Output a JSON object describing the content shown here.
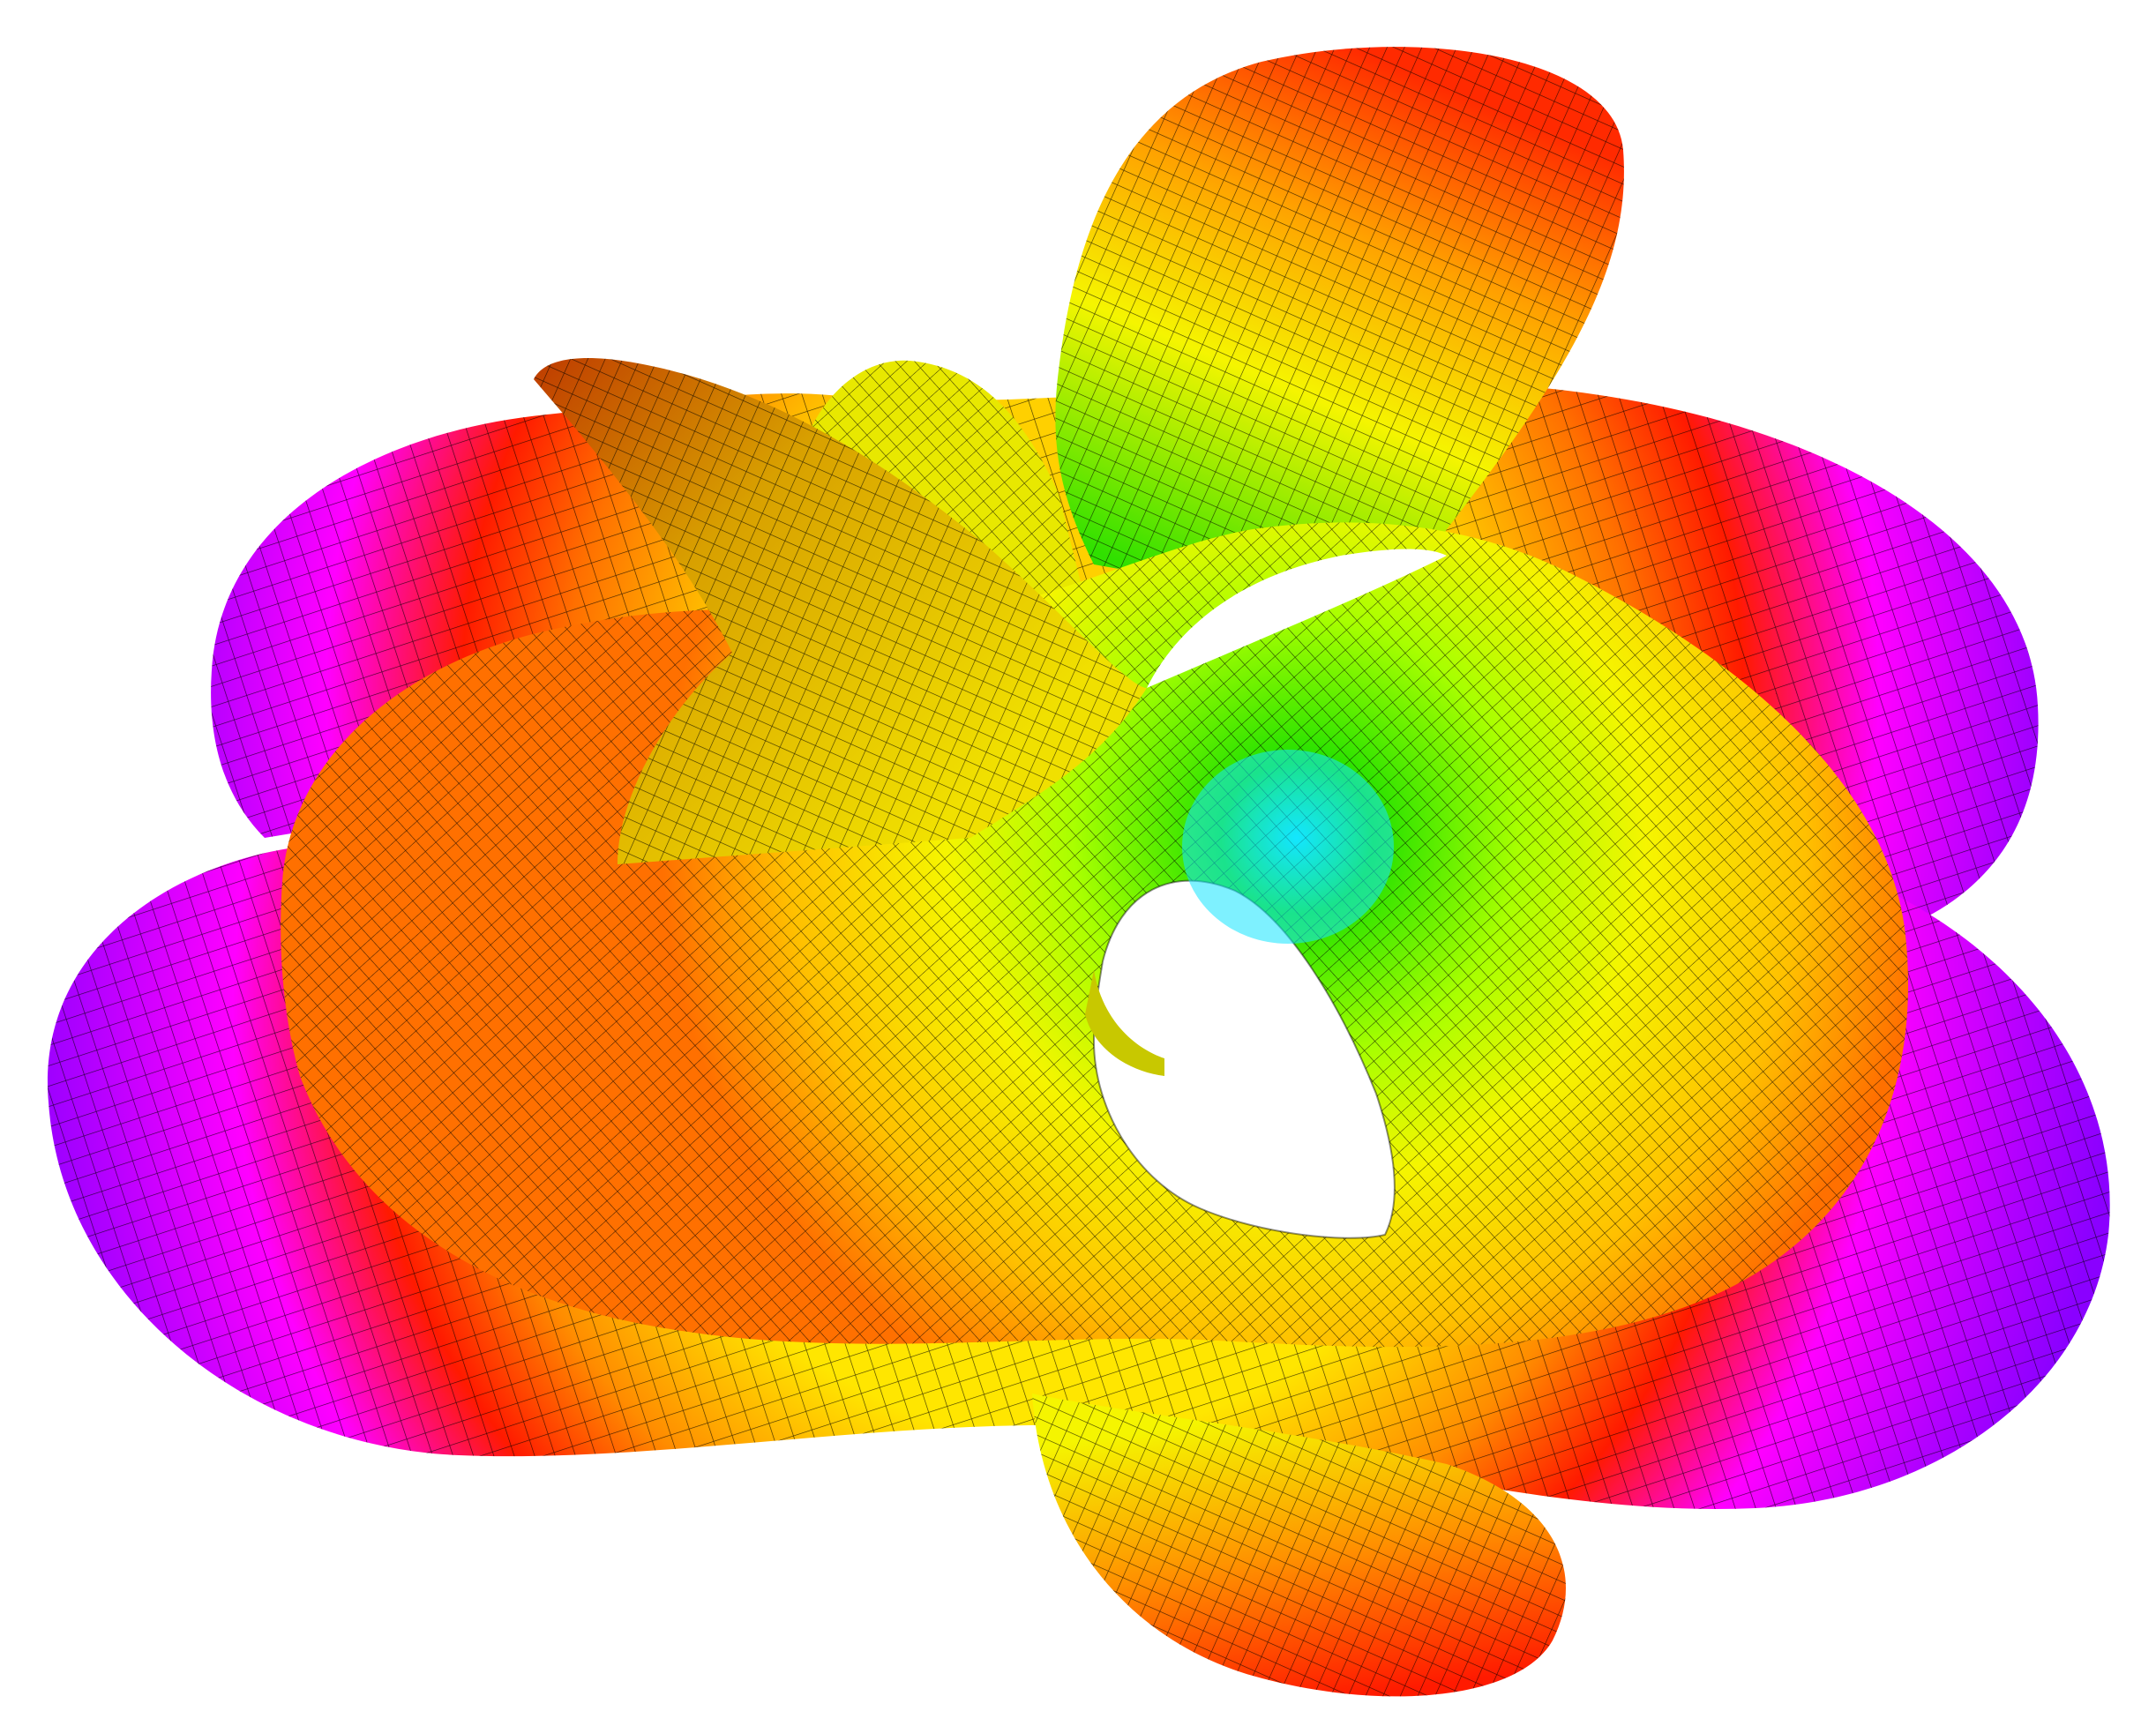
{
  "image": {
    "subject": "minimal-surface-render",
    "background_color": "#ffffff",
    "mesh_line_color": "#000000",
    "palette": {
      "violet": "#8a00ff",
      "magenta": "#ff00ff",
      "red": "#ff1a00",
      "orange": "#ff8c00",
      "yellow": "#f5f500",
      "lime": "#a8ff00",
      "green": "#22e000",
      "cyan": "#14e6ff"
    }
  }
}
